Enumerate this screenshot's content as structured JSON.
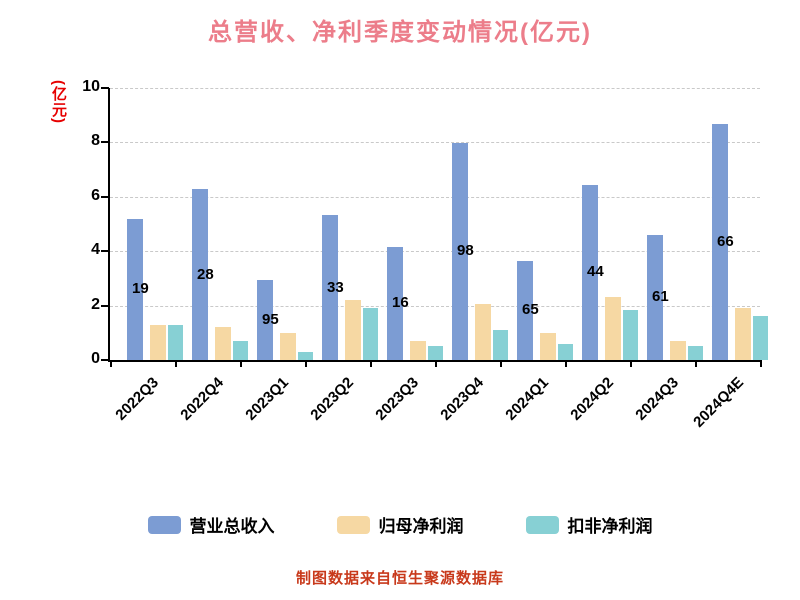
{
  "title": "总营收、净利季度变动情况(亿元)",
  "y_axis_name": "(亿元)",
  "footer": "制图数据来自恒生聚源数据库",
  "colors": {
    "title": "#ec7d8a",
    "axis_name": "#e60000",
    "footer": "#c8391b",
    "revenue": "#7c9cd3",
    "net_profit": "#f6d8a3",
    "non_gaap": "#87d0d4",
    "grid": "#c9c9c9",
    "axis": "#000000"
  },
  "legend": {
    "items": [
      {
        "label": "营业总收入",
        "color_key": "revenue"
      },
      {
        "label": "归母净利润",
        "color_key": "net_profit"
      },
      {
        "label": "扣非净利润",
        "color_key": "non_gaap"
      }
    ]
  },
  "chart_data": {
    "type": "bar",
    "title": "总营收、净利季度变动情况(亿元)",
    "ylabel": "(亿元)",
    "xlabel": "",
    "ylim": [
      0,
      10
    ],
    "yticks": [
      0,
      2,
      4,
      6,
      8,
      10
    ],
    "grid": "dashed-horizontal",
    "legend_position": "bottom",
    "xlabel_rotation_deg": 45,
    "categories": [
      "2022Q3",
      "2022Q4",
      "2023Q1",
      "2023Q2",
      "2023Q3",
      "2023Q4",
      "2024Q1",
      "2024Q2",
      "2024Q3",
      "2024Q4E"
    ],
    "series": [
      {
        "name": "营业总收入",
        "values": [
          5.19,
          6.28,
          2.95,
          5.33,
          4.16,
          7.98,
          3.65,
          6.44,
          4.61,
          8.66
        ],
        "visible_labels": [
          "19",
          "28",
          "95",
          "33",
          "16",
          "98",
          "65",
          "44",
          "61",
          "66"
        ]
      },
      {
        "name": "归母净利润",
        "values": [
          1.3,
          1.2,
          1.0,
          2.2,
          0.7,
          2.05,
          1.0,
          2.3,
          0.7,
          1.9
        ]
      },
      {
        "name": "扣非净利润",
        "values": [
          1.3,
          0.7,
          0.3,
          1.9,
          0.5,
          1.1,
          0.6,
          1.85,
          0.5,
          1.6
        ]
      }
    ]
  }
}
